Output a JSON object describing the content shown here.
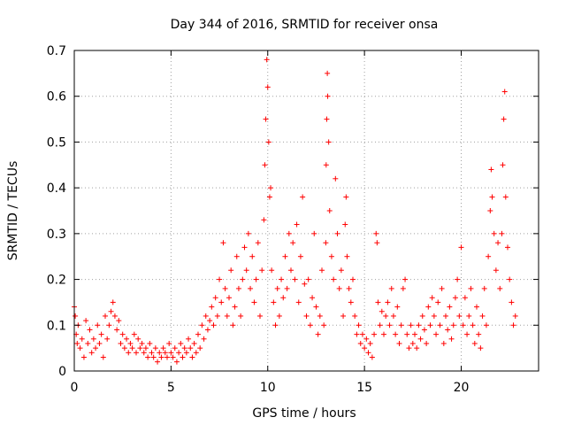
{
  "chart_data": {
    "type": "scatter",
    "title": "Day 344 of 2016, SRMTID for receiver onsa",
    "xlabel": "GPS time / hours",
    "ylabel": "SRMTID / TECUs",
    "xlim": [
      0,
      24
    ],
    "ylim": [
      0,
      0.7
    ],
    "x_ticks": [
      0,
      5,
      10,
      15,
      20
    ],
    "x_tick_labels": [
      "0",
      "5",
      "10",
      "15",
      "20"
    ],
    "y_ticks": [
      0,
      0.1,
      0.2,
      0.3,
      0.4,
      0.5,
      0.6,
      0.7
    ],
    "y_tick_labels": [
      "0",
      "0.1",
      "0.2",
      "0.3",
      "0.4",
      "0.5",
      "0.6",
      "0.7"
    ],
    "grid": true,
    "marker": "+",
    "series": [
      {
        "name": "SRMTID",
        "color": "#ff0000",
        "points": [
          [
            0.0,
            0.14
          ],
          [
            0.05,
            0.12
          ],
          [
            0.1,
            0.08
          ],
          [
            0.15,
            0.06
          ],
          [
            0.2,
            0.1
          ],
          [
            0.3,
            0.05
          ],
          [
            0.4,
            0.07
          ],
          [
            0.5,
            0.03
          ],
          [
            0.6,
            0.11
          ],
          [
            0.7,
            0.06
          ],
          [
            0.8,
            0.09
          ],
          [
            0.9,
            0.04
          ],
          [
            1.0,
            0.07
          ],
          [
            1.1,
            0.05
          ],
          [
            1.2,
            0.1
          ],
          [
            1.3,
            0.06
          ],
          [
            1.4,
            0.08
          ],
          [
            1.5,
            0.03
          ],
          [
            1.6,
            0.12
          ],
          [
            1.7,
            0.07
          ],
          [
            1.8,
            0.1
          ],
          [
            1.9,
            0.13
          ],
          [
            2.0,
            0.15
          ],
          [
            2.1,
            0.12
          ],
          [
            2.2,
            0.09
          ],
          [
            2.3,
            0.11
          ],
          [
            2.4,
            0.06
          ],
          [
            2.5,
            0.08
          ],
          [
            2.6,
            0.05
          ],
          [
            2.7,
            0.07
          ],
          [
            2.8,
            0.04
          ],
          [
            2.9,
            0.06
          ],
          [
            3.0,
            0.05
          ],
          [
            3.1,
            0.08
          ],
          [
            3.2,
            0.04
          ],
          [
            3.3,
            0.07
          ],
          [
            3.4,
            0.05
          ],
          [
            3.5,
            0.06
          ],
          [
            3.6,
            0.04
          ],
          [
            3.7,
            0.05
          ],
          [
            3.8,
            0.03
          ],
          [
            3.9,
            0.06
          ],
          [
            4.0,
            0.04
          ],
          [
            4.1,
            0.03
          ],
          [
            4.2,
            0.05
          ],
          [
            4.3,
            0.02
          ],
          [
            4.4,
            0.04
          ],
          [
            4.5,
            0.03
          ],
          [
            4.6,
            0.05
          ],
          [
            4.7,
            0.04
          ],
          [
            4.8,
            0.03
          ],
          [
            4.9,
            0.06
          ],
          [
            5.0,
            0.04
          ],
          [
            5.1,
            0.03
          ],
          [
            5.2,
            0.05
          ],
          [
            5.3,
            0.02
          ],
          [
            5.4,
            0.04
          ],
          [
            5.5,
            0.06
          ],
          [
            5.6,
            0.03
          ],
          [
            5.7,
            0.05
          ],
          [
            5.8,
            0.04
          ],
          [
            5.9,
            0.07
          ],
          [
            6.0,
            0.05
          ],
          [
            6.1,
            0.03
          ],
          [
            6.2,
            0.06
          ],
          [
            6.3,
            0.04
          ],
          [
            6.4,
            0.08
          ],
          [
            6.5,
            0.05
          ],
          [
            6.6,
            0.1
          ],
          [
            6.7,
            0.07
          ],
          [
            6.8,
            0.12
          ],
          [
            6.9,
            0.09
          ],
          [
            7.0,
            0.11
          ],
          [
            7.1,
            0.14
          ],
          [
            7.2,
            0.1
          ],
          [
            7.3,
            0.16
          ],
          [
            7.4,
            0.12
          ],
          [
            7.5,
            0.2
          ],
          [
            7.6,
            0.15
          ],
          [
            7.7,
            0.28
          ],
          [
            7.8,
            0.18
          ],
          [
            7.9,
            0.12
          ],
          [
            8.0,
            0.16
          ],
          [
            8.1,
            0.22
          ],
          [
            8.2,
            0.1
          ],
          [
            8.3,
            0.14
          ],
          [
            8.4,
            0.25
          ],
          [
            8.5,
            0.18
          ],
          [
            8.6,
            0.12
          ],
          [
            8.7,
            0.2
          ],
          [
            8.8,
            0.27
          ],
          [
            8.9,
            0.22
          ],
          [
            9.0,
            0.3
          ],
          [
            9.1,
            0.18
          ],
          [
            9.2,
            0.25
          ],
          [
            9.3,
            0.15
          ],
          [
            9.4,
            0.2
          ],
          [
            9.5,
            0.28
          ],
          [
            9.6,
            0.12
          ],
          [
            9.7,
            0.22
          ],
          [
            9.8,
            0.33
          ],
          [
            9.85,
            0.45
          ],
          [
            9.9,
            0.55
          ],
          [
            9.95,
            0.68
          ],
          [
            10.0,
            0.62
          ],
          [
            10.05,
            0.5
          ],
          [
            10.1,
            0.38
          ],
          [
            10.15,
            0.4
          ],
          [
            10.2,
            0.22
          ],
          [
            10.3,
            0.15
          ],
          [
            10.4,
            0.1
          ],
          [
            10.5,
            0.18
          ],
          [
            10.6,
            0.12
          ],
          [
            10.7,
            0.2
          ],
          [
            10.8,
            0.16
          ],
          [
            10.9,
            0.25
          ],
          [
            11.0,
            0.18
          ],
          [
            11.1,
            0.3
          ],
          [
            11.2,
            0.22
          ],
          [
            11.3,
            0.28
          ],
          [
            11.4,
            0.2
          ],
          [
            11.5,
            0.32
          ],
          [
            11.6,
            0.15
          ],
          [
            11.7,
            0.25
          ],
          [
            11.8,
            0.38
          ],
          [
            11.9,
            0.19
          ],
          [
            12.0,
            0.12
          ],
          [
            12.1,
            0.2
          ],
          [
            12.2,
            0.1
          ],
          [
            12.3,
            0.16
          ],
          [
            12.4,
            0.3
          ],
          [
            12.5,
            0.14
          ],
          [
            12.6,
            0.08
          ],
          [
            12.7,
            0.12
          ],
          [
            12.8,
            0.22
          ],
          [
            12.9,
            0.1
          ],
          [
            13.0,
            0.28
          ],
          [
            13.02,
            0.45
          ],
          [
            13.05,
            0.55
          ],
          [
            13.08,
            0.65
          ],
          [
            13.1,
            0.6
          ],
          [
            13.15,
            0.5
          ],
          [
            13.2,
            0.35
          ],
          [
            13.3,
            0.25
          ],
          [
            13.4,
            0.2
          ],
          [
            13.5,
            0.42
          ],
          [
            13.6,
            0.3
          ],
          [
            13.7,
            0.18
          ],
          [
            13.8,
            0.22
          ],
          [
            13.9,
            0.12
          ],
          [
            14.0,
            0.32
          ],
          [
            14.05,
            0.38
          ],
          [
            14.1,
            0.25
          ],
          [
            14.2,
            0.18
          ],
          [
            14.3,
            0.15
          ],
          [
            14.4,
            0.2
          ],
          [
            14.5,
            0.12
          ],
          [
            14.6,
            0.08
          ],
          [
            14.7,
            0.1
          ],
          [
            14.8,
            0.06
          ],
          [
            14.9,
            0.08
          ],
          [
            15.0,
            0.05
          ],
          [
            15.1,
            0.07
          ],
          [
            15.2,
            0.04
          ],
          [
            15.3,
            0.06
          ],
          [
            15.4,
            0.03
          ],
          [
            15.5,
            0.08
          ],
          [
            15.6,
            0.3
          ],
          [
            15.65,
            0.28
          ],
          [
            15.7,
            0.15
          ],
          [
            15.8,
            0.1
          ],
          [
            15.9,
            0.13
          ],
          [
            16.0,
            0.08
          ],
          [
            16.1,
            0.12
          ],
          [
            16.2,
            0.15
          ],
          [
            16.3,
            0.1
          ],
          [
            16.4,
            0.18
          ],
          [
            16.5,
            0.12
          ],
          [
            16.6,
            0.08
          ],
          [
            16.7,
            0.14
          ],
          [
            16.8,
            0.06
          ],
          [
            16.9,
            0.1
          ],
          [
            17.0,
            0.18
          ],
          [
            17.1,
            0.2
          ],
          [
            17.2,
            0.08
          ],
          [
            17.3,
            0.05
          ],
          [
            17.4,
            0.1
          ],
          [
            17.5,
            0.06
          ],
          [
            17.6,
            0.08
          ],
          [
            17.7,
            0.05
          ],
          [
            17.8,
            0.1
          ],
          [
            17.9,
            0.07
          ],
          [
            18.0,
            0.12
          ],
          [
            18.1,
            0.09
          ],
          [
            18.2,
            0.06
          ],
          [
            18.3,
            0.14
          ],
          [
            18.4,
            0.1
          ],
          [
            18.5,
            0.16
          ],
          [
            18.6,
            0.12
          ],
          [
            18.7,
            0.08
          ],
          [
            18.8,
            0.15
          ],
          [
            18.9,
            0.1
          ],
          [
            19.0,
            0.18
          ],
          [
            19.1,
            0.06
          ],
          [
            19.2,
            0.12
          ],
          [
            19.3,
            0.09
          ],
          [
            19.4,
            0.14
          ],
          [
            19.5,
            0.07
          ],
          [
            19.6,
            0.1
          ],
          [
            19.7,
            0.16
          ],
          [
            19.8,
            0.2
          ],
          [
            19.9,
            0.12
          ],
          [
            20.0,
            0.27
          ],
          [
            20.1,
            0.1
          ],
          [
            20.2,
            0.16
          ],
          [
            20.3,
            0.08
          ],
          [
            20.4,
            0.12
          ],
          [
            20.5,
            0.18
          ],
          [
            20.6,
            0.1
          ],
          [
            20.7,
            0.06
          ],
          [
            20.8,
            0.14
          ],
          [
            20.9,
            0.08
          ],
          [
            21.0,
            0.05
          ],
          [
            21.1,
            0.12
          ],
          [
            21.2,
            0.18
          ],
          [
            21.3,
            0.1
          ],
          [
            21.4,
            0.25
          ],
          [
            21.5,
            0.35
          ],
          [
            21.55,
            0.44
          ],
          [
            21.6,
            0.38
          ],
          [
            21.7,
            0.3
          ],
          [
            21.8,
            0.22
          ],
          [
            21.9,
            0.28
          ],
          [
            22.0,
            0.18
          ],
          [
            22.1,
            0.3
          ],
          [
            22.15,
            0.45
          ],
          [
            22.2,
            0.55
          ],
          [
            22.25,
            0.61
          ],
          [
            22.3,
            0.38
          ],
          [
            22.4,
            0.27
          ],
          [
            22.5,
            0.2
          ],
          [
            22.6,
            0.15
          ],
          [
            22.7,
            0.1
          ],
          [
            22.8,
            0.12
          ]
        ]
      }
    ]
  }
}
